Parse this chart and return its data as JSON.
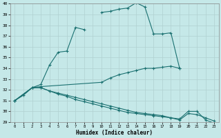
{
  "xlabel": "Humidex (Indice chaleur)",
  "background_color": "#c5e8e8",
  "line_color": "#1a7070",
  "xlim": [
    -0.5,
    23.5
  ],
  "ylim": [
    29,
    40
  ],
  "yticks": [
    29,
    30,
    31,
    32,
    33,
    34,
    35,
    36,
    37,
    38,
    39,
    40
  ],
  "xticks": [
    0,
    1,
    2,
    3,
    4,
    5,
    6,
    7,
    8,
    9,
    10,
    11,
    12,
    13,
    14,
    15,
    16,
    17,
    18,
    19,
    20,
    21,
    22,
    23
  ],
  "series": [
    {
      "x": [
        0,
        1,
        2,
        3,
        4,
        5,
        6,
        7,
        8,
        9,
        10,
        11,
        12,
        13,
        14,
        15,
        16,
        17,
        18,
        19
      ],
      "y": [
        31.0,
        31.5,
        32.2,
        32.5,
        34.3,
        35.5,
        35.6,
        37.8,
        37.6,
        null,
        39.2,
        39.3,
        39.5,
        39.6,
        40.1,
        39.7,
        37.2,
        37.2,
        37.3,
        34.0
      ]
    },
    {
      "x": [
        0,
        2,
        3,
        10,
        11,
        12,
        13,
        14,
        15,
        16,
        17,
        18,
        19
      ],
      "y": [
        31.0,
        32.2,
        32.3,
        32.7,
        33.1,
        33.4,
        33.6,
        33.8,
        34.0,
        34.0,
        34.1,
        34.2,
        34.0
      ]
    },
    {
      "x": [
        0,
        2,
        3,
        4,
        5,
        6,
        7,
        8,
        9,
        10,
        11,
        12,
        13,
        14,
        15,
        16,
        17,
        18,
        19,
        20,
        21,
        22,
        23
      ],
      "y": [
        31.0,
        32.2,
        32.2,
        31.9,
        31.6,
        31.4,
        31.1,
        30.9,
        30.7,
        30.5,
        30.3,
        30.1,
        29.9,
        29.8,
        29.7,
        29.6,
        29.5,
        29.4,
        29.3,
        30.0,
        30.0,
        29.2,
        28.9
      ]
    },
    {
      "x": [
        0,
        2,
        3,
        4,
        5,
        6,
        7,
        8,
        9,
        10,
        11,
        12,
        13,
        14,
        15,
        16,
        17,
        18,
        19,
        20,
        21,
        22,
        23
      ],
      "y": [
        31.0,
        32.2,
        32.2,
        31.9,
        31.7,
        31.5,
        31.3,
        31.1,
        30.9,
        30.7,
        30.5,
        30.3,
        30.1,
        29.9,
        29.8,
        29.7,
        29.6,
        29.4,
        29.2,
        29.8,
        29.7,
        29.4,
        29.1
      ]
    }
  ]
}
